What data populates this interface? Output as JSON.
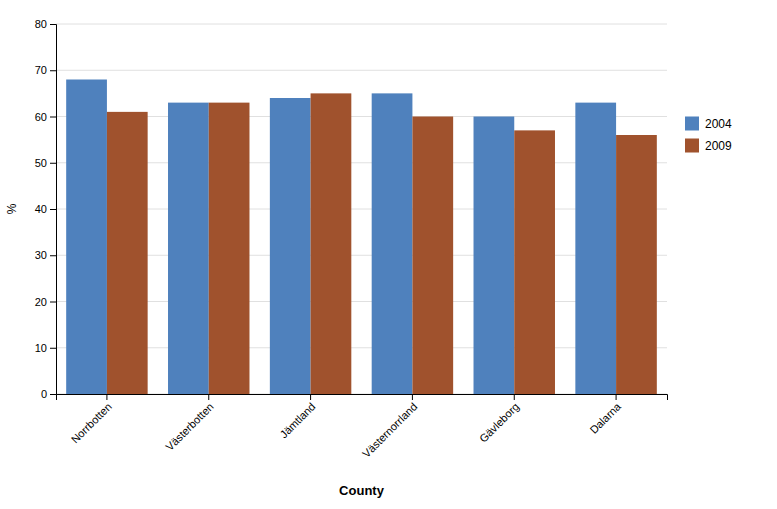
{
  "chart_data": {
    "type": "bar",
    "categories": [
      "Norrbotten",
      "Västerbotten",
      "Jämtland",
      "Västernorrland",
      "Gävleborg",
      "Dalarna"
    ],
    "series": [
      {
        "name": "2004",
        "color": "#4F81BD",
        "values": [
          68,
          63,
          64,
          65,
          60,
          63
        ]
      },
      {
        "name": "2009",
        "color": "#A0522D",
        "values": [
          61,
          63,
          65,
          60,
          57,
          56
        ]
      }
    ],
    "xlabel": "County",
    "ylabel": "%",
    "ylim": [
      0,
      80
    ],
    "yticks": [
      0,
      10,
      20,
      30,
      40,
      50,
      60,
      70,
      80
    ],
    "grid": true,
    "legend": "right"
  }
}
